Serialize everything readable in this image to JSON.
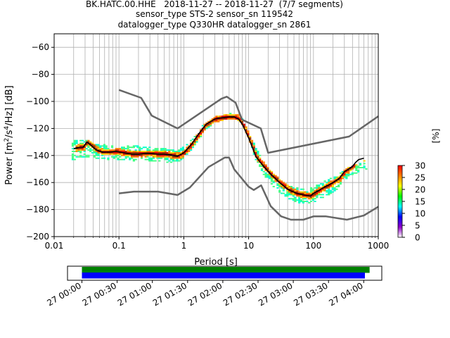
{
  "title_lines": [
    "BK.HATC.00.HHE   2018-11-27 -- 2018-11-27  (7/7 segments)",
    "sensor_type STS-2 sensor_sn 119542",
    "datalogger_type Q330HR datalogger_sn 2861"
  ],
  "chart_data": [
    {
      "type": "heatmap",
      "xlabel": "Period [s]",
      "ylabel": "Power [m²/s⁴/Hz] [dB]",
      "xscale": "log",
      "xlim": [
        0.01,
        1000
      ],
      "ylim": [
        -200,
        -50
      ],
      "xticks": [
        0.01,
        0.1,
        1,
        10,
        100,
        1000
      ],
      "xtick_labels": [
        "0.01",
        "0.1",
        "1",
        "10",
        "100",
        "1000"
      ],
      "yticks": [
        -200,
        -180,
        -160,
        -140,
        -120,
        -100,
        -80,
        -60
      ],
      "ytick_labels": [
        "−200",
        "−180",
        "−160",
        "−140",
        "−120",
        "−100",
        "−80",
        "−60"
      ],
      "grid": true,
      "colorbar": {
        "label": "[%]",
        "min": 0,
        "max": 30,
        "ticks": [
          0,
          5,
          10,
          15,
          20,
          25,
          30
        ],
        "colors": [
          "#ffffff",
          "#8e00c8",
          "#0000ff",
          "#00ffff",
          "#00ff00",
          "#ffff00",
          "#ff7f00",
          "#ff0000"
        ]
      },
      "series": [
        {
          "role": "noise_model_upper",
          "color": "#666666",
          "x": [
            0.1,
            0.22,
            0.32,
            0.8,
            3.8,
            4.6,
            6.3,
            7.9,
            15.4,
            20,
            354.8,
            1000
          ],
          "y": [
            -91.5,
            -97.4,
            -110.5,
            -120,
            -98,
            -96.5,
            -101,
            -113.5,
            -120,
            -138,
            -126,
            -111
          ]
        },
        {
          "role": "noise_model_lower",
          "color": "#666666",
          "x": [
            0.1,
            0.17,
            0.4,
            0.8,
            1.24,
            2.4,
            4.3,
            5.0,
            6.0,
            10.0,
            12.0,
            15.6,
            21.9,
            31.6,
            45.0,
            70.0,
            101.0,
            154.0,
            328.0,
            600.0,
            1000.0
          ],
          "y": [
            -168,
            -166.7,
            -166.7,
            -169.2,
            -163.7,
            -148.6,
            -141.5,
            -141.5,
            -150.2,
            -163.1,
            -165.5,
            -162.1,
            -177.5,
            -185,
            -187.5,
            -187.5,
            -185,
            -185,
            -187.5,
            -184.4,
            -177.9
          ]
        },
        {
          "role": "mode",
          "color": "#000000",
          "x": [
            0.02,
            0.024,
            0.028,
            0.032,
            0.038,
            0.045,
            0.055,
            0.07,
            0.09,
            0.12,
            0.16,
            0.2,
            0.25,
            0.3,
            0.4,
            0.5,
            0.6,
            0.8,
            1.0,
            1.3,
            1.7,
            2.2,
            3.0,
            4.0,
            5.0,
            6.0,
            7.0,
            8.0,
            10.0,
            13.0,
            17.0,
            22.0,
            30.0,
            40.0,
            55.0,
            75.0,
            90.0,
            100.0,
            120.0,
            140.0,
            170.0,
            200.0,
            250.0,
            300.0,
            350.0,
            400.0,
            450.0,
            500.0,
            600.0
          ],
          "y": [
            -135,
            -134,
            -134,
            -130,
            -133,
            -136,
            -137.5,
            -137.5,
            -137,
            -138,
            -139,
            -139,
            -138.5,
            -138.5,
            -139,
            -139,
            -139.5,
            -140.5,
            -138,
            -132,
            -124,
            -117,
            -113,
            -112,
            -111.5,
            -111.5,
            -113,
            -117,
            -127,
            -141,
            -148,
            -154,
            -160,
            -165,
            -168,
            -169.5,
            -170,
            -168,
            -166,
            -164,
            -162,
            -160,
            -157,
            -152,
            -150,
            -148,
            -145,
            -143,
            -142
          ]
        }
      ],
      "density_band": {
        "x": [
          0.018,
          0.025,
          0.03,
          0.04,
          0.06,
          0.1,
          0.15,
          0.2,
          0.3,
          0.5,
          0.8,
          1.0,
          1.3,
          1.7,
          2.2,
          3.0,
          4.0,
          5.0,
          6.0,
          7.0,
          8.0,
          10.0,
          13.0,
          17.0,
          22.0,
          30.0,
          40.0,
          55.0,
          75.0,
          100.0,
          130.0,
          170.0,
          220.0,
          300.0,
          400.0,
          500.0,
          650.0
        ],
        "y_low": [
          -144,
          -142,
          -141,
          -142,
          -143,
          -143,
          -144,
          -144,
          -144.5,
          -145,
          -145,
          -142,
          -135,
          -127,
          -120,
          -116,
          -114,
          -113,
          -113,
          -115,
          -119,
          -130,
          -146,
          -155,
          -162,
          -168,
          -172,
          -175,
          -176,
          -175,
          -172,
          -169,
          -165,
          -158,
          -155,
          -152,
          -150
        ],
        "y_high": [
          -128,
          -129,
          -128,
          -131,
          -132,
          -134,
          -132,
          -133,
          -134,
          -135,
          -136,
          -133,
          -128,
          -120,
          -115,
          -111,
          -110,
          -109,
          -109,
          -110,
          -114,
          -124,
          -136,
          -145,
          -152,
          -158,
          -162,
          -164,
          -165,
          -163,
          -160,
          -157,
          -155,
          -150,
          -147,
          -145,
          -143
        ]
      }
    },
    {
      "type": "timeline",
      "xlim": [
        "2018-11-27 00:00",
        "2018-11-27 04:20"
      ],
      "tick_labels": [
        "27 00:00",
        "27 00:30",
        "27 01:00",
        "27 01:30",
        "27 02:00",
        "27 02:30",
        "27 03:00",
        "27 03:30",
        "27 04:00"
      ],
      "tick_minutes": [
        0,
        30,
        60,
        90,
        120,
        150,
        180,
        210,
        240
      ],
      "bars": [
        {
          "color": "#008000",
          "start_min": 0,
          "end_min": 245
        },
        {
          "color": "#0000ff",
          "start_min": 0,
          "end_min": 241
        }
      ]
    }
  ]
}
